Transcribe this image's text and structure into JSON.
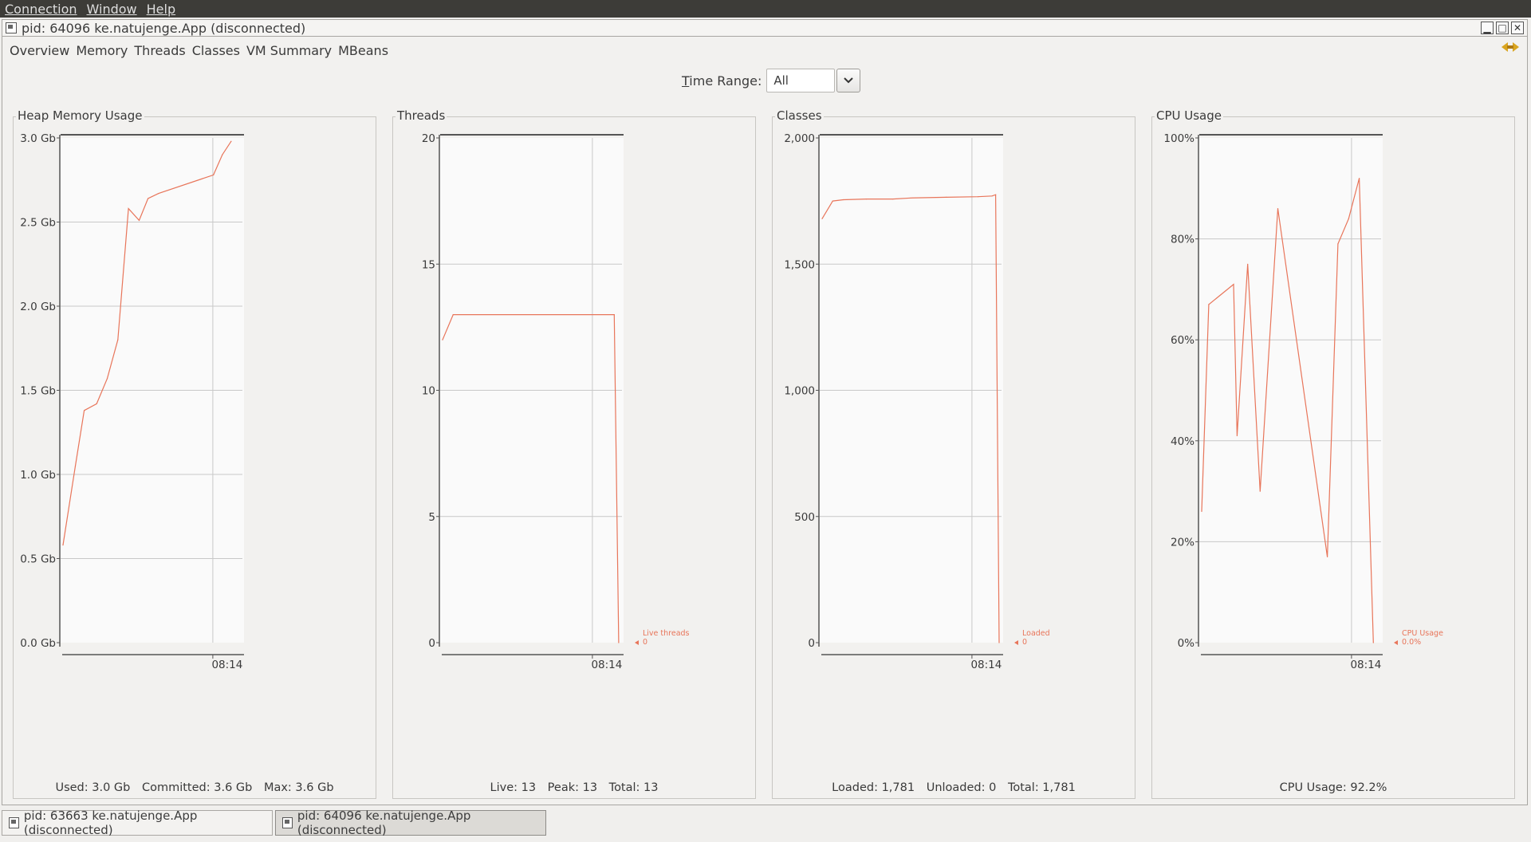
{
  "menubar": {
    "items": [
      "Connection",
      "Window",
      "Help"
    ]
  },
  "window": {
    "title": "pid: 64096 ke.natujenge.App (disconnected)"
  },
  "tabs": [
    "Overview",
    "Memory",
    "Threads",
    "Classes",
    "VM Summary",
    "MBeans"
  ],
  "time_range": {
    "label": "Time Range:",
    "value": "All"
  },
  "colors": {
    "line": "#e8755a",
    "grid": "#c8c8c8",
    "axis": "#555555"
  },
  "panels": {
    "heap": {
      "title": "Heap Memory Usage",
      "footer": [
        "Used: 3.0 Gb",
        "Committed: 3.6 Gb",
        "Max: 3.6 Gb"
      ]
    },
    "threads": {
      "title": "Threads",
      "footer": [
        "Live: 13",
        "Peak: 13",
        "Total: 13"
      ],
      "legend": [
        "Live threads",
        "0"
      ]
    },
    "classes": {
      "title": "Classes",
      "footer": [
        "Loaded: 1,781",
        "Unloaded: 0",
        "Total: 1,781"
      ],
      "legend": [
        "Loaded",
        "0"
      ]
    },
    "cpu": {
      "title": "CPU Usage",
      "footer": [
        "CPU Usage: 92.2%"
      ],
      "legend": [
        "CPU Usage",
        "0.0%"
      ]
    }
  },
  "chart_data": [
    {
      "type": "line",
      "title": "Heap Memory Usage",
      "yticks": [
        "0.0 Gb",
        "0.5 Gb",
        "1.0 Gb",
        "1.5 Gb",
        "2.0 Gb",
        "2.5 Gb",
        "3.0 Gb"
      ],
      "ylim": [
        0,
        3.0
      ],
      "xtick": "08:14",
      "series": [
        {
          "x": [
            0,
            0.07,
            0.12,
            0.19,
            0.25,
            0.31,
            0.37,
            0.43,
            0.48,
            0.54,
            0.85,
            0.9,
            0.95
          ],
          "values": [
            0.58,
            1.05,
            1.38,
            1.42,
            1.57,
            1.8,
            2.58,
            2.51,
            2.64,
            2.67,
            2.78,
            2.9,
            2.98
          ]
        }
      ]
    },
    {
      "type": "line",
      "title": "Threads",
      "yticks": [
        "0",
        "5",
        "10",
        "15",
        "20"
      ],
      "ylim": [
        0,
        20
      ],
      "xtick": "08:14",
      "series": [
        {
          "x": [
            0,
            0.06,
            0.97,
            0.995
          ],
          "values": [
            12,
            13,
            13,
            0
          ]
        }
      ]
    },
    {
      "type": "line",
      "title": "Classes",
      "yticks": [
        "0",
        "500",
        "1,000",
        "1,500",
        "2,000"
      ],
      "ylim": [
        0,
        2000
      ],
      "xtick": "08:14",
      "series": [
        {
          "x": [
            0,
            0.06,
            0.12,
            0.25,
            0.4,
            0.5,
            0.7,
            0.88,
            0.96,
            0.98,
            1.0
          ],
          "values": [
            1680,
            1750,
            1755,
            1758,
            1758,
            1762,
            1765,
            1767,
            1770,
            1775,
            0
          ]
        }
      ]
    },
    {
      "type": "line",
      "title": "CPU Usage",
      "yticks": [
        "0%",
        "20%",
        "40%",
        "60%",
        "80%",
        "100%"
      ],
      "ylim": [
        0,
        100
      ],
      "xtick": "08:14",
      "series": [
        {
          "x": [
            0,
            0.04,
            0.18,
            0.2,
            0.26,
            0.33,
            0.43,
            0.71,
            0.77,
            0.83,
            0.89,
            0.97
          ],
          "values": [
            26,
            67,
            71,
            41,
            75,
            30,
            86,
            17,
            79,
            84,
            92,
            0
          ]
        }
      ]
    }
  ],
  "taskbar": {
    "items": [
      "pid: 63663 ke.natujenge.App (disconnected)",
      "pid: 64096 ke.natujenge.App (disconnected)"
    ]
  }
}
